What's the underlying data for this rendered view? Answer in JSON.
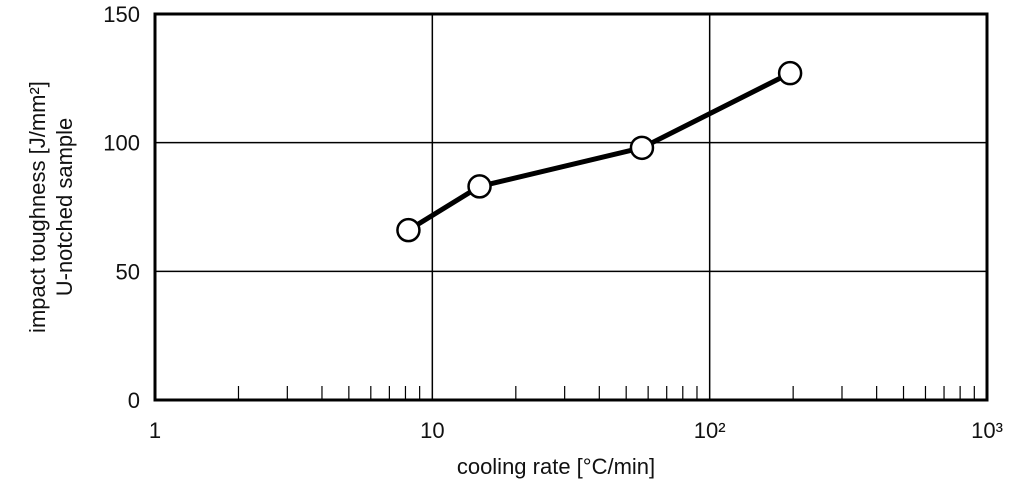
{
  "chart_data": {
    "type": "line",
    "xlabel": "cooling rate [°C/min]",
    "ylabel": [
      "impact toughness [J/mm²]",
      "U-notched sample"
    ],
    "xscale": "log",
    "xlim": [
      1,
      1000
    ],
    "ylim": [
      0,
      150
    ],
    "x_ticks": [
      1,
      10,
      100,
      1000
    ],
    "x_tick_labels": [
      "1",
      "10",
      "10²",
      "10³"
    ],
    "y_ticks": [
      0,
      50,
      100,
      150
    ],
    "y_tick_labels": [
      "0",
      "50",
      "100",
      "150"
    ],
    "grid": true,
    "marker": "open-circle",
    "line_color": "#000000",
    "series": [
      {
        "x": [
          8.2,
          14.8,
          57,
          195
        ],
        "y": [
          66,
          83,
          98,
          127
        ]
      }
    ]
  }
}
